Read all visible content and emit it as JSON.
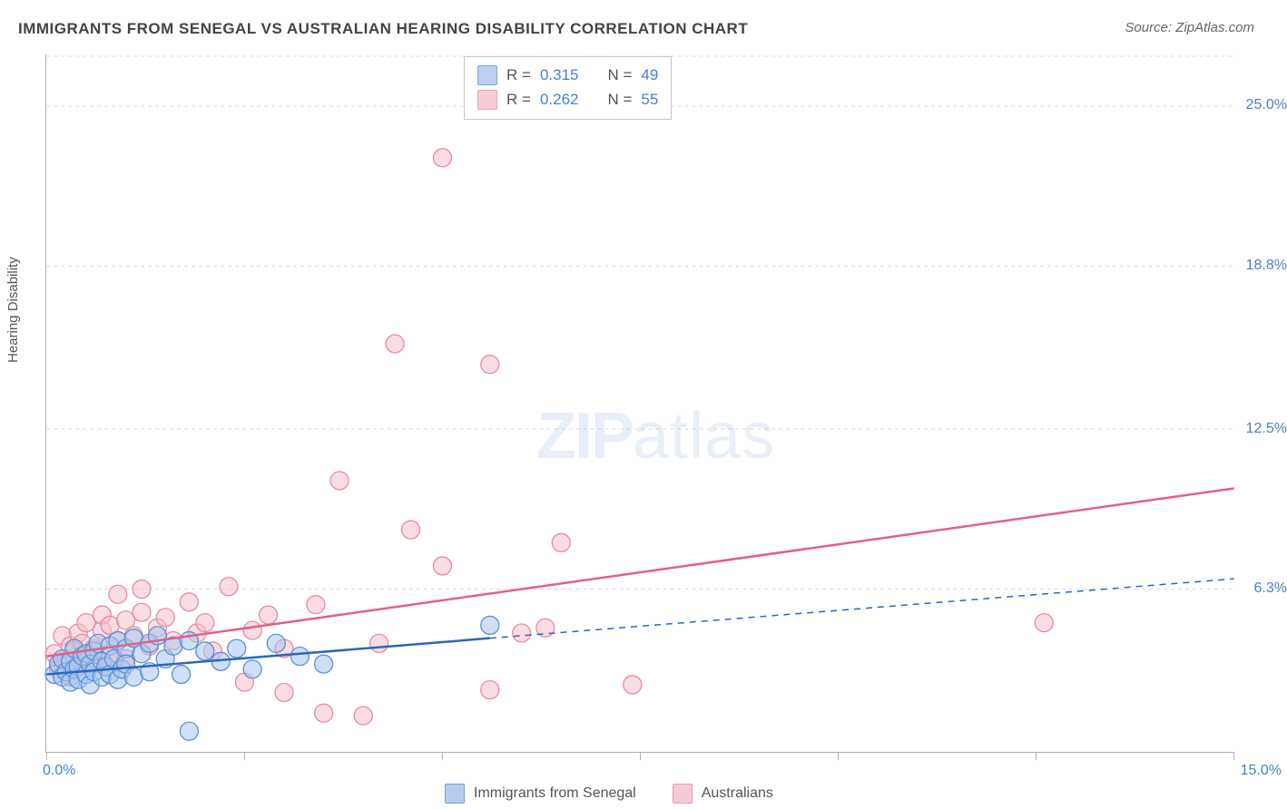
{
  "chart": {
    "type": "scatter-with-regression",
    "title": "IMMIGRANTS FROM SENEGAL VS AUSTRALIAN HEARING DISABILITY CORRELATION CHART",
    "source": "Source: ZipAtlas.com",
    "watermark": "ZIPatlas",
    "ylabel": "Hearing Disability",
    "xlim": [
      0,
      15
    ],
    "ylim": [
      0,
      27
    ],
    "xtick_positions": [
      0,
      2.5,
      5,
      7.5,
      10,
      12.5,
      15
    ],
    "ytick_values": [
      6.3,
      12.5,
      18.8,
      25.0
    ],
    "ytick_labels": [
      "6.3%",
      "12.5%",
      "18.8%",
      "25.0%"
    ],
    "x_min_label": "0.0%",
    "x_max_label": "15.0%",
    "background_color": "#ffffff",
    "grid_color": "#d8d8d8",
    "axis_color": "#b0b0b0",
    "tick_label_color": "#4a7fc9",
    "tick_label_fontsize": 16,
    "title_fontsize": 17,
    "title_color": "#444444"
  },
  "series": [
    {
      "key": "senegal",
      "label": "Immigrants from Senegal",
      "fill_color": "#a8c5ec",
      "stroke_color": "#5d8fd4",
      "fill_opacity": 0.55,
      "marker_radius": 10,
      "line_color": "#2d66bd",
      "line_width": 2.5,
      "R": "0.315",
      "N": "49",
      "regression": {
        "x1": 0,
        "y1": 3.0,
        "x2_solid": 5.6,
        "y2_solid": 4.4,
        "x2_dash": 15,
        "y2_dash": 6.7
      },
      "points": [
        [
          0.1,
          3.0
        ],
        [
          0.15,
          3.4
        ],
        [
          0.2,
          2.9
        ],
        [
          0.2,
          3.6
        ],
        [
          0.25,
          3.1
        ],
        [
          0.3,
          3.5
        ],
        [
          0.3,
          2.7
        ],
        [
          0.35,
          3.2
        ],
        [
          0.35,
          4.0
        ],
        [
          0.4,
          3.3
        ],
        [
          0.4,
          2.8
        ],
        [
          0.45,
          3.7
        ],
        [
          0.5,
          3.0
        ],
        [
          0.5,
          3.8
        ],
        [
          0.55,
          3.4
        ],
        [
          0.55,
          2.6
        ],
        [
          0.6,
          3.9
        ],
        [
          0.6,
          3.1
        ],
        [
          0.65,
          4.2
        ],
        [
          0.7,
          3.5
        ],
        [
          0.7,
          2.9
        ],
        [
          0.75,
          3.3
        ],
        [
          0.8,
          4.1
        ],
        [
          0.8,
          3.0
        ],
        [
          0.85,
          3.6
        ],
        [
          0.9,
          4.3
        ],
        [
          0.9,
          2.8
        ],
        [
          0.95,
          3.2
        ],
        [
          1.0,
          4.0
        ],
        [
          1.0,
          3.4
        ],
        [
          1.1,
          4.4
        ],
        [
          1.1,
          2.9
        ],
        [
          1.2,
          3.8
        ],
        [
          1.3,
          4.2
        ],
        [
          1.3,
          3.1
        ],
        [
          1.4,
          4.5
        ],
        [
          1.5,
          3.6
        ],
        [
          1.6,
          4.1
        ],
        [
          1.7,
          3.0
        ],
        [
          1.8,
          4.3
        ],
        [
          1.8,
          0.8
        ],
        [
          2.0,
          3.9
        ],
        [
          2.2,
          3.5
        ],
        [
          2.4,
          4.0
        ],
        [
          2.6,
          3.2
        ],
        [
          2.9,
          4.2
        ],
        [
          3.2,
          3.7
        ],
        [
          3.5,
          3.4
        ],
        [
          5.6,
          4.9
        ]
      ]
    },
    {
      "key": "australians",
      "label": "Australians",
      "fill_color": "#f5c1cc",
      "stroke_color": "#e68aa2",
      "fill_opacity": 0.55,
      "marker_radius": 10,
      "line_color": "#e26088",
      "line_width": 2.5,
      "R": "0.262",
      "N": "55",
      "regression": {
        "x1": 0,
        "y1": 3.7,
        "x2_solid": 15,
        "y2_solid": 10.2,
        "x2_dash": 15,
        "y2_dash": 10.2
      },
      "points": [
        [
          0.1,
          3.8
        ],
        [
          0.15,
          3.2
        ],
        [
          0.2,
          4.5
        ],
        [
          0.25,
          3.6
        ],
        [
          0.3,
          4.1
        ],
        [
          0.3,
          2.9
        ],
        [
          0.35,
          3.9
        ],
        [
          0.4,
          4.6
        ],
        [
          0.4,
          3.3
        ],
        [
          0.45,
          4.2
        ],
        [
          0.5,
          3.7
        ],
        [
          0.5,
          5.0
        ],
        [
          0.6,
          4.0
        ],
        [
          0.6,
          3.4
        ],
        [
          0.7,
          4.7
        ],
        [
          0.7,
          5.3
        ],
        [
          0.8,
          3.8
        ],
        [
          0.8,
          4.9
        ],
        [
          0.9,
          4.3
        ],
        [
          0.9,
          6.1
        ],
        [
          1.0,
          3.6
        ],
        [
          1.0,
          5.1
        ],
        [
          1.1,
          4.5
        ],
        [
          1.2,
          5.4
        ],
        [
          1.2,
          6.3
        ],
        [
          1.3,
          4.1
        ],
        [
          1.4,
          4.8
        ],
        [
          1.5,
          5.2
        ],
        [
          1.6,
          4.3
        ],
        [
          1.8,
          5.8
        ],
        [
          1.9,
          4.6
        ],
        [
          2.0,
          5.0
        ],
        [
          2.1,
          3.9
        ],
        [
          2.3,
          6.4
        ],
        [
          2.5,
          2.7
        ],
        [
          2.6,
          4.7
        ],
        [
          2.8,
          5.3
        ],
        [
          3.0,
          4.0
        ],
        [
          3.0,
          2.3
        ],
        [
          3.4,
          5.7
        ],
        [
          3.5,
          1.5
        ],
        [
          3.7,
          10.5
        ],
        [
          4.0,
          1.4
        ],
        [
          4.2,
          4.2
        ],
        [
          4.4,
          15.8
        ],
        [
          4.6,
          8.6
        ],
        [
          5.0,
          23.0
        ],
        [
          5.0,
          7.2
        ],
        [
          5.6,
          15.0
        ],
        [
          5.6,
          2.4
        ],
        [
          6.0,
          4.6
        ],
        [
          6.3,
          4.8
        ],
        [
          6.5,
          8.1
        ],
        [
          7.4,
          2.6
        ],
        [
          12.6,
          5.0
        ]
      ]
    }
  ],
  "legend_top": {
    "R_prefix": "R  =",
    "N_prefix": "N  ="
  },
  "legend_bottom": {
    "items": [
      "Immigrants from Senegal",
      "Australians"
    ]
  }
}
